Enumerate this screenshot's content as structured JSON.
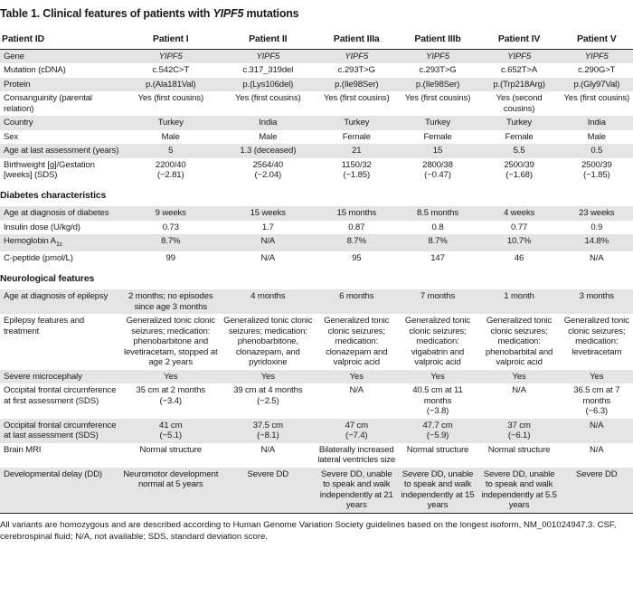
{
  "title": {
    "text": "Table 1. Clinical features of patients with",
    "gene": "YIPF5",
    "suffix": "mutations"
  },
  "columns": [
    "Patient ID",
    "Patient I",
    "Patient II",
    "Patient IIIa",
    "Patient IIIb",
    "Patient IV",
    "Patient V"
  ],
  "sections": [
    {
      "rows": [
        {
          "label": "Gene",
          "style": "italic",
          "values": [
            "YIPF5",
            "YIPF5",
            "YIPF5",
            "YIPF5",
            "YIPF5",
            "YIPF5"
          ]
        },
        {
          "label": "Mutation (cDNA)",
          "values": [
            "c.542C>T",
            "c.317_319del",
            "c.293T>G",
            "c.293T>G",
            "c.652T>A",
            "c.290G>T"
          ]
        },
        {
          "label": "Protein",
          "values": [
            "p.(Ala181Val)",
            "p.(Lys106del)",
            "p.(Ile98Ser)",
            "p.(Ile98Ser)",
            "p.(Trp218Arg)",
            "p.(Gly97Val)"
          ]
        },
        {
          "label": "Consanguinity (parental relation)",
          "values": [
            "Yes (first cousins)",
            "Yes (first cousins)",
            "Yes (first cousins)",
            "Yes (first cousins)",
            "Yes (second cousins)",
            "Yes (first cousins)"
          ]
        },
        {
          "label": "Country",
          "values": [
            "Turkey",
            "India",
            "Turkey",
            "Turkey",
            "Turkey",
            "India"
          ]
        },
        {
          "label": "Sex",
          "values": [
            "Male",
            "Male",
            "Female",
            "Female",
            "Female",
            "Male"
          ]
        },
        {
          "label": "Age at last assessment (years)",
          "values": [
            "5",
            "1.3 (deceased)",
            "21",
            "15",
            "5.5",
            "0.5"
          ]
        },
        {
          "label": "Birthweight [g]/Gestation [weeks] (SDS)",
          "values": [
            "2200/40\n(−2.81)",
            "2564/40\n(−2.04)",
            "1150/32\n(−1.85)",
            "2800/38\n(−0.47)",
            "2500/39\n(−1.68)",
            "2500/39\n(−1.85)"
          ]
        }
      ]
    },
    {
      "heading": "Diabetes characteristics",
      "rows": [
        {
          "label": "Age at diagnosis of diabetes",
          "values": [
            "9 weeks",
            "15 weeks",
            "15 months",
            "8.5 months",
            "4 weeks",
            "23 weeks"
          ]
        },
        {
          "label": "Insulin dose (U/kg/d)",
          "values": [
            "0.73",
            "1.7",
            "0.87",
            "0.8",
            "0.77",
            "0.9"
          ]
        },
        {
          "label": {
            "text": "Hemoglobin A",
            "sub": "1c"
          },
          "values": [
            "8.7%",
            "N/A",
            "8.7%",
            "8.7%",
            "10.7%",
            "14.8%"
          ]
        },
        {
          "label": "C-peptide (pmol/L)",
          "values": [
            "99",
            "N/A",
            "95",
            "147",
            "46",
            "N/A"
          ]
        }
      ]
    },
    {
      "heading": "Neurological features",
      "rows": [
        {
          "label": "Age at diagnosis of epilepsy",
          "values": [
            "2 months; no episodes since age 3 months",
            "4 months",
            "6 months",
            "7 months",
            "1 month",
            "3 months"
          ]
        },
        {
          "label": "Epilepsy features and treatment",
          "values": [
            "Generalized tonic clonic seizures; medication: phenobarbitone and levetiracetam, stopped at age 2 years",
            "Generalized tonic clonic seizures; medication: phenobarbitone, clonazepam, and pyridoxine",
            "Generalized tonic clonic seizures; medication: clonazepam and valproic acid",
            "Generalized tonic clonic seizures; medication: vigabatrin and valproic acid",
            "Generalized tonic clonic seizures; medication: phenobarbital and valproic acid",
            "Generalized tonic clonic seizures; medication: levetiracetam"
          ]
        },
        {
          "label": "Severe microcephaly",
          "values": [
            "Yes",
            "Yes",
            "Yes",
            "Yes",
            "Yes",
            "Yes"
          ]
        },
        {
          "label": "Occipital frontal circumference at first assessment (SDS)",
          "values": [
            "35 cm at 2 months\n(−3.4)",
            "39 cm at 4 months\n(−2.5)",
            "N/A",
            "40.5 cm at 11 months\n(−3.8)",
            "N/A",
            "36.5 cm at 7 months\n(−6.3)"
          ]
        },
        {
          "label": "Occipital frontal circumference at last assessment (SDS)",
          "values": [
            "41 cm\n(−5.1)",
            "37.5 cm\n(−8.1)",
            "47 cm\n(−7.4)",
            "47.7 cm\n(−5.9)",
            "37 cm\n(−6.1)",
            "N/A"
          ]
        },
        {
          "label": "Brain MRI",
          "values": [
            "Normal structure",
            "N/A",
            "Bilaterally increased lateral ventricles size",
            "Normal structure",
            "Normal structure",
            "N/A"
          ]
        },
        {
          "label": "Developmental delay (DD)",
          "values": [
            "Neuromotor development normal at 5 years",
            "Severe DD",
            "Severe DD, unable to speak and walk independently at 21 years",
            "Severe DD, unable to speak and walk independently at 15 years",
            "Severe DD, unable to speak and walk independently at 5.5 years",
            "Severe DD"
          ]
        }
      ]
    }
  ],
  "footnote": "All variants are homozygous and are described according to Human Genome Variation Society guidelines based on the longest isoform, NM_001024947.3. CSF, cerebrospinal fluid; N/A, not available; SDS, standard deviation score."
}
